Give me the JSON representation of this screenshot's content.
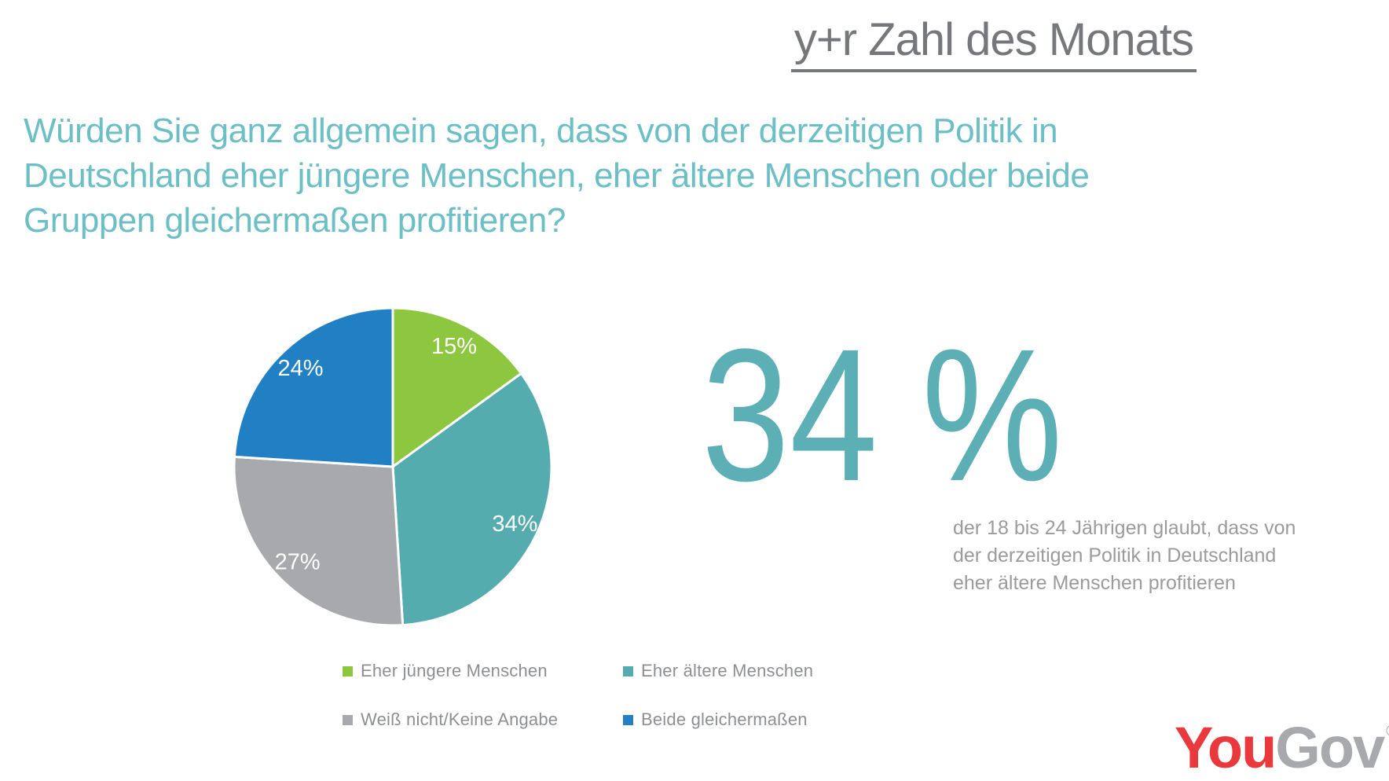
{
  "header": {
    "title": "y+r Zahl des Monats",
    "title_color": "#76777B"
  },
  "question_lines": [
    "Würden Sie ganz allgemein sagen, dass von der derzeitigen Politik in",
    "Deutschland eher jüngere Menschen, eher ältere Menschen oder beide",
    "Gruppen gleichermaßen profitieren?"
  ],
  "chart_data": {
    "type": "pie",
    "title": "",
    "start_angle_deg": 0,
    "direction": "clockwise",
    "data_labels": "percent-inside",
    "legend_position": "bottom",
    "slices": [
      {
        "label": "Eher jüngere Menschen",
        "value": 15,
        "color": "#8DC63F"
      },
      {
        "label": "Eher ältere Menschen",
        "value": 34,
        "color": "#55ACAE"
      },
      {
        "label": "Weiß nicht/Keine Angabe",
        "value": 27,
        "color": "#A7A9AC"
      },
      {
        "label": "Beide gleichermaßen",
        "value": 24,
        "color": "#2180C4"
      }
    ]
  },
  "highlight": {
    "stat": "34 %",
    "stat_color": "#5BAFB5",
    "description_lines": [
      "der 18 bis 24 Jährigen glaubt, dass von",
      "der derzeitigen Politik in Deutschland",
      "eher ältere Menschen profitieren"
    ]
  },
  "logo": {
    "you": "You",
    "gov": "Gov",
    "registered": "®",
    "you_color": "#E9393C",
    "gov_color": "#A7A9AC"
  },
  "colors": {
    "question_text": "#6CBFC4",
    "legend_text": "#8D8F92",
    "description_text": "#9B9B9B",
    "data_label_text": "#FFFFFF"
  }
}
